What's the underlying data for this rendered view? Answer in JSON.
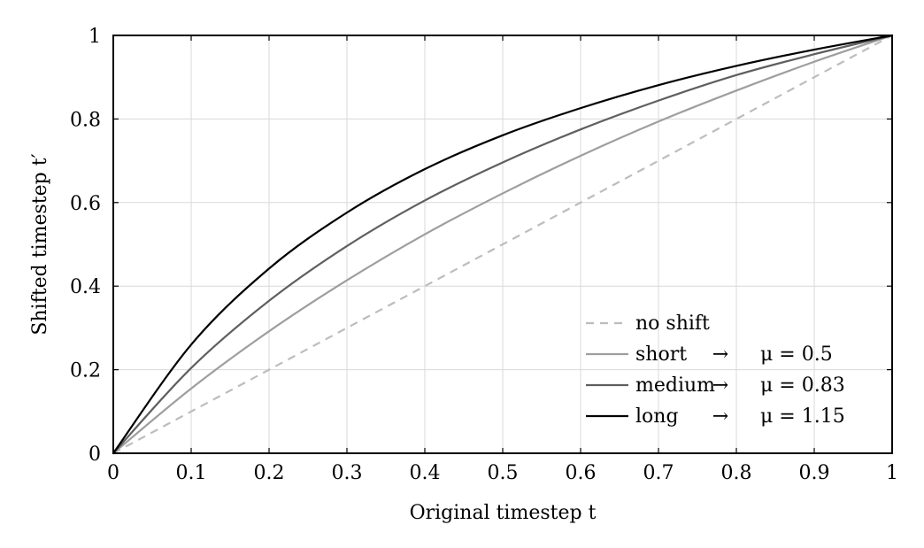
{
  "chart_data": {
    "type": "line",
    "title": "",
    "xlabel": "Original timestep t",
    "ylabel": "Shifted timestep t′",
    "xlim": [
      0,
      1
    ],
    "ylim": [
      0,
      1
    ],
    "x_ticks": [
      "0",
      "0.1",
      "0.2",
      "0.3",
      "0.4",
      "0.5",
      "0.6",
      "0.7",
      "0.8",
      "0.9",
      "1"
    ],
    "y_ticks": [
      "0",
      "0.2",
      "0.4",
      "0.6",
      "0.8",
      "1"
    ],
    "grid": true,
    "legend_position": "bottom-right",
    "x": [
      0,
      0.1,
      0.2,
      0.3,
      0.4,
      0.5,
      0.6,
      0.7,
      0.8,
      0.9,
      1
    ],
    "series": [
      {
        "name": "no shift",
        "style": "dashed",
        "color": "#bdbdbd",
        "values": [
          0,
          0.1,
          0.2,
          0.3,
          0.4,
          0.5,
          0.6,
          0.7,
          0.8,
          0.9,
          1
        ]
      },
      {
        "name": "short → μ = 0.5",
        "style": "solid",
        "color": "#9e9e9e",
        "values": [
          0,
          0.155,
          0.292,
          0.414,
          0.524,
          0.622,
          0.712,
          0.794,
          0.868,
          0.937,
          1
        ]
      },
      {
        "name": "medium → μ = 0.83",
        "style": "solid",
        "color": "#5f5f5f",
        "values": [
          0,
          0.204,
          0.365,
          0.496,
          0.605,
          0.696,
          0.775,
          0.844,
          0.905,
          0.955,
          1
        ]
      },
      {
        "name": "long → μ = 1.15",
        "style": "solid",
        "color": "#000000",
        "values": [
          0,
          0.26,
          0.442,
          0.576,
          0.68,
          0.761,
          0.826,
          0.881,
          0.927,
          0.966,
          1
        ]
      }
    ]
  },
  "legend": [
    {
      "name": "no shift",
      "arrow": "",
      "mu": ""
    },
    {
      "name": "short",
      "arrow": "→",
      "mu": "μ = 0.5"
    },
    {
      "name": "medium",
      "arrow": "→",
      "mu": "μ = 0.83"
    },
    {
      "name": "long",
      "arrow": "→",
      "mu": "μ = 1.15"
    }
  ]
}
